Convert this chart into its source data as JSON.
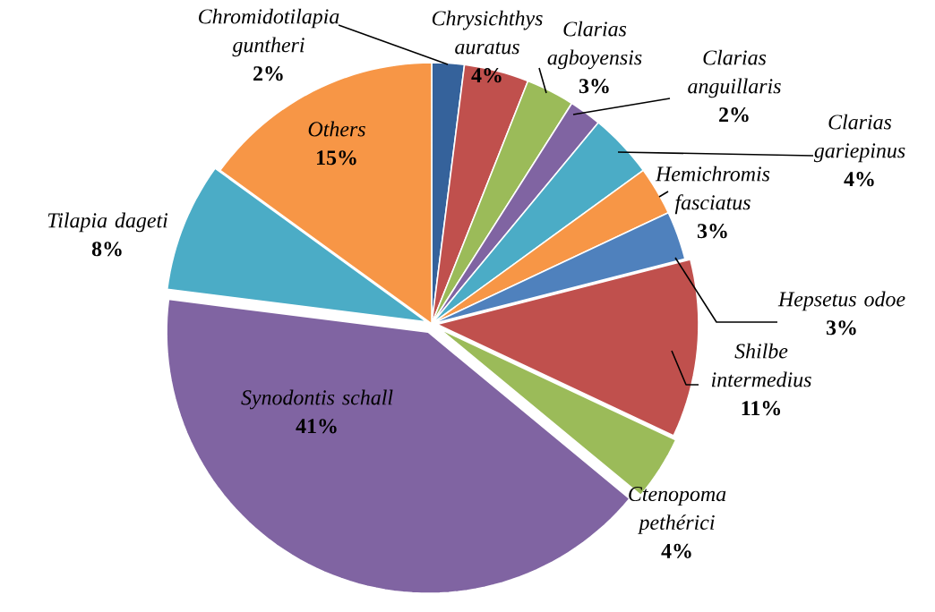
{
  "chart_data": {
    "type": "pie",
    "categories": [
      "Chromidotilapia guntheri",
      "Chrysichthys auratus",
      "Clarias agboyensis",
      "Clarias anguillaris",
      "Clarias gariepinus",
      "Hemichromis fasciatus",
      "Hepsetus odoe",
      "Shilbe intermedius",
      "Ctenopoma pethérici",
      "Synodontis schall",
      "Tilapia dageti",
      "Others"
    ],
    "values": [
      2,
      4,
      3,
      2,
      4,
      3,
      3,
      11,
      4,
      41,
      8,
      15
    ],
    "value_labels": [
      "2%",
      "4%",
      "3%",
      "2%",
      "4%",
      "3%",
      "3%",
      "11%",
      "4%",
      "41%",
      "8%",
      "15%"
    ],
    "colors": [
      "#35629b",
      "#c0504d",
      "#9bbb59",
      "#8064a2",
      "#4bacc6",
      "#f79646",
      "#4f81bd",
      "#c0504d",
      "#9bbb59",
      "#8064a2",
      "#4bacc6",
      "#f79646"
    ]
  }
}
